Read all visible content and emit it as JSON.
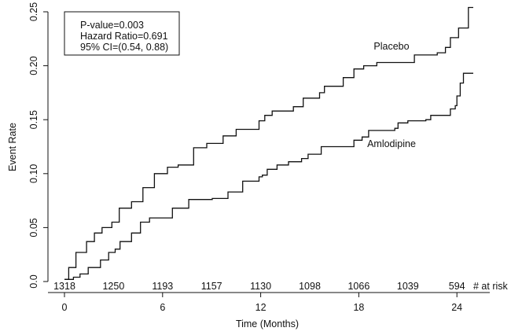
{
  "chart_data": {
    "type": "line",
    "title": "",
    "xlabel": "Time (Months)",
    "ylabel": "Event Rate",
    "xlim": [
      0,
      25
    ],
    "ylim": [
      0,
      0.25
    ],
    "x_ticks": [
      0,
      6,
      12,
      18,
      24
    ],
    "x_tick_labels": [
      "0",
      "6",
      "12",
      "18",
      "24"
    ],
    "y_ticks": [
      0,
      0.05,
      0.1,
      0.15,
      0.2,
      0.25
    ],
    "y_tick_labels": [
      "0.0",
      "0.05",
      "0.10",
      "0.15",
      "0.20",
      "0.25"
    ],
    "grid": false,
    "step": true,
    "line_color": "#111111",
    "annotation_box": [
      "P-value=0.003",
      "Hazard Ratio=0.691",
      "95% CI=(0.54, 0.88)"
    ],
    "at_risk_label": "# at risk",
    "at_risk": {
      "months": [
        0,
        3,
        6,
        9,
        12,
        15,
        18,
        21,
        24
      ],
      "counts": [
        "1318",
        "1250",
        "1193",
        "1157",
        "1130",
        "1098",
        "1066",
        "1039",
        "594"
      ]
    },
    "series": [
      {
        "name": "Placebo",
        "x": [
          0,
          0.26,
          0.7,
          1.35,
          1.83,
          2.3,
          2.9,
          3.35,
          4.1,
          4.8,
          5.5,
          6.3,
          6.95,
          7.9,
          8.7,
          9.7,
          10.5,
          11.9,
          12.1,
          12.25,
          12.7,
          14.0,
          14.6,
          15.6,
          15.9,
          17.05,
          17.7,
          18.3,
          19.1,
          20.1,
          21.4,
          22.8,
          23.3,
          23.6,
          24.1,
          24.6,
          24.7,
          25.0
        ],
        "y": [
          0.002,
          0.013,
          0.027,
          0.037,
          0.045,
          0.05,
          0.055,
          0.068,
          0.074,
          0.087,
          0.1,
          0.106,
          0.108,
          0.124,
          0.128,
          0.135,
          0.141,
          0.149,
          0.149,
          0.154,
          0.158,
          0.162,
          0.17,
          0.175,
          0.181,
          0.189,
          0.197,
          0.2,
          0.203,
          0.203,
          0.21,
          0.212,
          0.217,
          0.226,
          0.235,
          0.235,
          0.254,
          0.254
        ]
      },
      {
        "name": "Amlodipine",
        "x": [
          0,
          0.55,
          0.95,
          1.35,
          1.45,
          2.2,
          2.7,
          3.1,
          3.4,
          4.1,
          4.65,
          5.2,
          6.0,
          6.6,
          7.6,
          9.04,
          10.0,
          10.9,
          11.9,
          12.1,
          12.4,
          13.0,
          13.7,
          14.5,
          14.9,
          15.7,
          17.7,
          18.2,
          18.6,
          20.2,
          20.4,
          21.0,
          22.1,
          22.4,
          23.2,
          23.6,
          23.9,
          24.0,
          24.2,
          24.4,
          25.0
        ],
        "y": [
          0.002,
          0.004,
          0.007,
          0.007,
          0.013,
          0.02,
          0.027,
          0.03,
          0.037,
          0.045,
          0.055,
          0.059,
          0.059,
          0.068,
          0.076,
          0.077,
          0.083,
          0.093,
          0.097,
          0.0986,
          0.104,
          0.108,
          0.111,
          0.114,
          0.118,
          0.125,
          0.131,
          0.134,
          0.14,
          0.142,
          0.147,
          0.149,
          0.15,
          0.154,
          0.154,
          0.16,
          0.163,
          0.172,
          0.184,
          0.193,
          0.193
        ]
      }
    ]
  }
}
